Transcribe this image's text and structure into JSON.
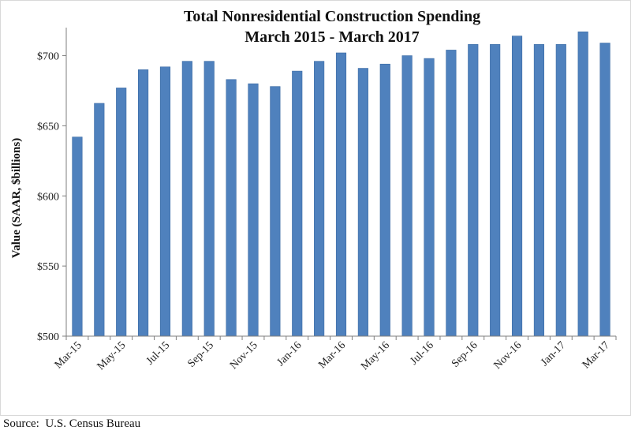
{
  "chart_data": {
    "type": "bar",
    "title_lines": [
      "Total Nonresidential Construction Spending",
      "March 2015 - March 2017"
    ],
    "ylabel": "Value (SAAR, $billions)",
    "xlabel": "",
    "ylim": [
      500,
      720
    ],
    "yticks": [
      500,
      550,
      600,
      650,
      700
    ],
    "ytick_labels": [
      "$500",
      "$550",
      "$600",
      "$650",
      "$700"
    ],
    "categories": [
      "Mar-15",
      "Apr-15",
      "May-15",
      "Jun-15",
      "Jul-15",
      "Aug-15",
      "Sep-15",
      "Oct-15",
      "Nov-15",
      "Dec-15",
      "Jan-16",
      "Feb-16",
      "Mar-16",
      "Apr-16",
      "May-16",
      "Jun-16",
      "Jul-16",
      "Aug-16",
      "Sep-16",
      "Oct-16",
      "Nov-16",
      "Dec-16",
      "Jan-17",
      "Feb-17",
      "Mar-17"
    ],
    "xtick_labels": [
      "Mar-15",
      "",
      "May-15",
      "",
      "Jul-15",
      "",
      "Sep-15",
      "",
      "Nov-15",
      "",
      "Jan-16",
      "",
      "Mar-16",
      "",
      "May-16",
      "",
      "Jul-16",
      "",
      "Sep-16",
      "",
      "Nov-16",
      "",
      "Jan-17",
      "",
      "Mar-17"
    ],
    "values": [
      642,
      666,
      677,
      690,
      692,
      696,
      696,
      683,
      680,
      678,
      689,
      696,
      702,
      691,
      694,
      700,
      698,
      704,
      708,
      708,
      714,
      708,
      708,
      717,
      709
    ],
    "bar_color": "#4f81bd",
    "bar_edge_color": "#3a6aa3",
    "grid": false,
    "legend": "none"
  },
  "source": "Source:  U.S. Census Bureau"
}
